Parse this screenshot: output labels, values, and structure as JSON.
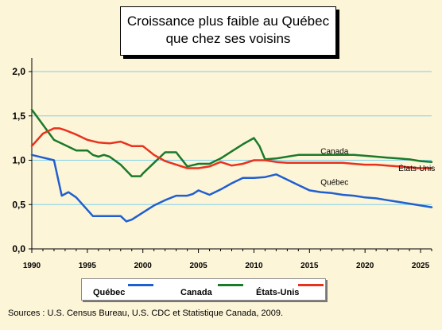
{
  "title_line1": "Croissance plus faible au Québec",
  "title_line2": "que chez ses voisins",
  "source": "Sources : U.S. Census Bureau, U.S. CDC et Statistique Canada, 2009.",
  "colors": {
    "quebec": "#1f5fcf",
    "canada": "#1a7a2a",
    "etats_unis": "#e8321e",
    "grid": "#7fd0ea",
    "background": "#fdf5d8"
  },
  "legend": [
    {
      "name": "Québec",
      "color": "#1f5fcf"
    },
    {
      "name": "Canada",
      "color": "#1a7a2a"
    },
    {
      "name": "États-Unis",
      "color": "#e8321e"
    }
  ],
  "chart_data": {
    "type": "line",
    "xlim": [
      1990,
      2026
    ],
    "ylim": [
      0,
      2.2
    ],
    "xticks": [
      "1990",
      "1995",
      "2000",
      "2005",
      "2010",
      "2015",
      "2020",
      "2025"
    ],
    "yticks": [
      "0,0",
      "0,5",
      "1,0",
      "1,5",
      "2,0"
    ],
    "grid": "horizontal",
    "legend_position": "bottom",
    "series": [
      {
        "name": "Québec",
        "color": "#1f5fcf",
        "x": [
          1990,
          1991,
          1992,
          1992.7,
          1993.3,
          1994,
          1995,
          1995.5,
          1996,
          1997,
          1998,
          1998.5,
          1999,
          2000,
          2001,
          2002,
          2003,
          2004,
          2004.5,
          2005,
          2006,
          2007,
          2008,
          2009,
          2010,
          2011,
          2012,
          2013,
          2014,
          2015,
          2016,
          2017,
          2018,
          2019,
          2020,
          2021,
          2022,
          2023,
          2024,
          2025,
          2026
        ],
        "y": [
          1.06,
          1.03,
          1.0,
          0.6,
          0.64,
          0.58,
          0.44,
          0.37,
          0.37,
          0.37,
          0.37,
          0.31,
          0.33,
          0.41,
          0.49,
          0.55,
          0.6,
          0.6,
          0.62,
          0.66,
          0.61,
          0.67,
          0.74,
          0.8,
          0.8,
          0.81,
          0.84,
          0.78,
          0.72,
          0.66,
          0.64,
          0.63,
          0.61,
          0.6,
          0.58,
          0.57,
          0.55,
          0.53,
          0.51,
          0.49,
          0.47
        ]
      },
      {
        "name": "Canada",
        "color": "#1a7a2a",
        "x": [
          1990,
          1991,
          1992,
          1993,
          1994,
          1995,
          1995.5,
          1996,
          1996.5,
          1997,
          1998,
          1999,
          1999.8,
          2000,
          2001,
          2002,
          2003,
          2004,
          2005,
          2006,
          2007,
          2008,
          2009,
          2010,
          2010.5,
          2011,
          2012,
          2013,
          2014,
          2015,
          2016,
          2017,
          2018,
          2019,
          2020,
          2021,
          2022,
          2023,
          2024,
          2025,
          2026
        ],
        "y": [
          1.57,
          1.4,
          1.23,
          1.17,
          1.11,
          1.11,
          1.06,
          1.04,
          1.06,
          1.04,
          0.95,
          0.82,
          0.82,
          0.85,
          0.97,
          1.09,
          1.09,
          0.93,
          0.96,
          0.96,
          1.02,
          1.1,
          1.18,
          1.25,
          1.16,
          1.01,
          1.02,
          1.04,
          1.06,
          1.06,
          1.06,
          1.06,
          1.06,
          1.06,
          1.05,
          1.04,
          1.03,
          1.02,
          1.01,
          0.99,
          0.98
        ]
      },
      {
        "name": "États-Unis",
        "color": "#e8321e",
        "x": [
          1990,
          1991,
          1992,
          1992.5,
          1993,
          1994,
          1995,
          1996,
          1997,
          1998,
          1999,
          2000,
          2001,
          2002,
          2003,
          2004,
          2005,
          2006,
          2007,
          2008,
          2009,
          2010,
          2011,
          2012,
          2013,
          2014,
          2015,
          2016,
          2017,
          2018,
          2019,
          2020,
          2021,
          2022,
          2023,
          2024,
          2025,
          2026
        ],
        "y": [
          1.16,
          1.3,
          1.36,
          1.36,
          1.34,
          1.29,
          1.23,
          1.2,
          1.19,
          1.21,
          1.16,
          1.16,
          1.06,
          0.99,
          0.95,
          0.91,
          0.91,
          0.93,
          0.98,
          0.94,
          0.96,
          1.0,
          1.0,
          0.98,
          0.97,
          0.97,
          0.97,
          0.97,
          0.97,
          0.97,
          0.96,
          0.95,
          0.95,
          0.94,
          0.93,
          0.92,
          0.91,
          0.91
        ]
      }
    ],
    "annotations": [
      {
        "text": "Canada",
        "x": 2016,
        "y": 1.07
      },
      {
        "text": "États-Unis",
        "x": 2023,
        "y": 0.88
      },
      {
        "text": "Québec",
        "x": 2016,
        "y": 0.72
      }
    ]
  }
}
